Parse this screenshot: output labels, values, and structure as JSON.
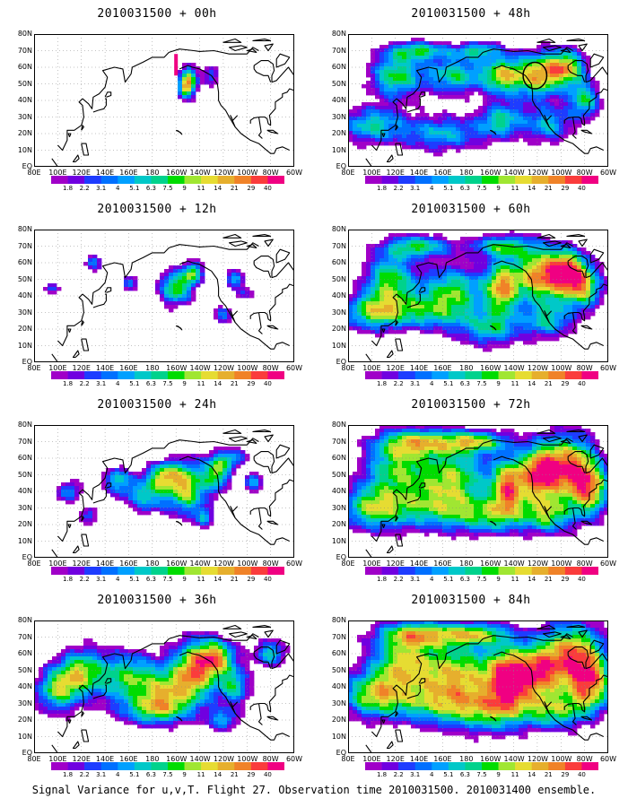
{
  "figure": {
    "caption": "Signal Variance for u,v,T. Flight 27. Observation time 2010031500. 2010031400 ensemble."
  },
  "chart_data": {
    "type": "heatmap",
    "map_lon_range": [
      80,
      300
    ],
    "map_lat_range": [
      0,
      80
    ],
    "lon_tick_labels": [
      "80E",
      "100E",
      "120E",
      "140E",
      "160E",
      "180",
      "160W",
      "140W",
      "120W",
      "100W",
      "80W",
      "60W"
    ],
    "lat_tick_labels": [
      "EQ",
      "10N",
      "20N",
      "30N",
      "40N",
      "50N",
      "60N",
      "70N",
      "80N"
    ],
    "colorbar_labels": [
      "1.8",
      "2.2",
      "3.1",
      "4",
      "5.1",
      "6.3",
      "7.5",
      "9",
      "11",
      "14",
      "21",
      "29",
      "40"
    ],
    "colorbar_colors": [
      "#a000c8",
      "#7000e0",
      "#1e3cff",
      "#0070ff",
      "#00a0ff",
      "#00c8c8",
      "#00d28c",
      "#00dc00",
      "#a0e632",
      "#e6dc32",
      "#e6af2d",
      "#f08228",
      "#fa3c3c",
      "#f00082"
    ],
    "panels": [
      {
        "title": "2010031500 + 00h",
        "lead_hours": 0
      },
      {
        "title": "2010031500 + 12h",
        "lead_hours": 12
      },
      {
        "title": "2010031500 + 24h",
        "lead_hours": 24
      },
      {
        "title": "2010031500 + 36h",
        "lead_hours": 36
      },
      {
        "title": "2010031500 + 48h",
        "lead_hours": 48
      },
      {
        "title": "2010031500 + 60h",
        "lead_hours": 60
      },
      {
        "title": "2010031500 + 72h",
        "lead_hours": 72
      },
      {
        "title": "2010031500 + 84h",
        "lead_hours": 84
      }
    ]
  },
  "blobs": [
    [
      [
        -150,
        50,
        6,
        6,
        0.6
      ],
      [
        -148,
        56,
        5,
        6,
        0.3
      ],
      [
        -153,
        46,
        4,
        4,
        0.3
      ],
      [
        -130,
        55,
        6,
        5,
        0.35
      ]
    ],
    [
      [
        -160,
        45,
        10,
        8,
        0.7
      ],
      [
        -145,
        54,
        6,
        5,
        0.6
      ],
      [
        -110,
        50,
        6,
        4,
        0.5
      ],
      [
        160,
        47,
        5,
        4,
        0.4
      ],
      [
        130,
        60,
        5,
        4,
        0.45
      ],
      [
        -120,
        28,
        6,
        4,
        0.4
      ],
      [
        95,
        45,
        5,
        3,
        0.4
      ],
      [
        -100,
        42,
        6,
        3,
        0.3
      ]
    ],
    [
      [
        -150,
        42,
        12,
        12,
        0.75
      ],
      [
        -125,
        52,
        8,
        8,
        0.7
      ],
      [
        175,
        38,
        14,
        8,
        0.55
      ],
      [
        150,
        47,
        8,
        6,
        0.5
      ],
      [
        110,
        40,
        8,
        5,
        0.45
      ],
      [
        -170,
        50,
        10,
        6,
        0.6
      ],
      [
        -135,
        24,
        5,
        4,
        0.45
      ],
      [
        -95,
        45,
        6,
        4,
        0.5
      ],
      [
        125,
        25,
        6,
        4,
        0.4
      ],
      [
        -110,
        60,
        8,
        4,
        0.45
      ]
    ],
    [
      [
        -145,
        48,
        14,
        14,
        0.85
      ],
      [
        -125,
        58,
        12,
        8,
        0.7
      ],
      [
        160,
        45,
        20,
        12,
        0.65
      ],
      [
        120,
        50,
        14,
        10,
        0.6
      ],
      [
        100,
        38,
        14,
        10,
        0.65
      ],
      [
        -170,
        35,
        14,
        10,
        0.5
      ],
      [
        -110,
        40,
        10,
        8,
        0.55
      ],
      [
        180,
        25,
        20,
        6,
        0.45
      ],
      [
        -120,
        20,
        10,
        5,
        0.45
      ],
      [
        -80,
        60,
        10,
        6,
        0.55
      ]
    ],
    [
      [
        -120,
        55,
        14,
        10,
        0.8
      ],
      [
        -95,
        60,
        12,
        8,
        0.75
      ],
      [
        -150,
        55,
        12,
        8,
        0.7
      ],
      [
        170,
        55,
        18,
        8,
        0.6
      ],
      [
        120,
        55,
        16,
        10,
        0.65
      ],
      [
        100,
        25,
        20,
        8,
        0.55
      ],
      [
        160,
        20,
        25,
        8,
        0.5
      ],
      [
        -150,
        28,
        14,
        8,
        0.55
      ],
      [
        -110,
        25,
        14,
        8,
        0.5
      ],
      [
        -80,
        40,
        10,
        8,
        0.6
      ],
      [
        140,
        70,
        18,
        4,
        0.55
      ],
      [
        -170,
        70,
        15,
        4,
        0.5
      ]
    ],
    [
      [
        -120,
        52,
        15,
        12,
        0.85
      ],
      [
        -95,
        55,
        12,
        10,
        0.8
      ],
      [
        -150,
        45,
        10,
        12,
        0.75
      ],
      [
        170,
        45,
        20,
        10,
        0.6
      ],
      [
        115,
        50,
        16,
        12,
        0.65
      ],
      [
        100,
        30,
        20,
        8,
        0.6
      ],
      [
        150,
        30,
        25,
        8,
        0.5
      ],
      [
        -160,
        20,
        20,
        8,
        0.5
      ],
      [
        -110,
        25,
        15,
        8,
        0.5
      ],
      [
        -80,
        45,
        12,
        10,
        0.65
      ],
      [
        140,
        70,
        20,
        5,
        0.6
      ],
      [
        -150,
        70,
        20,
        5,
        0.55
      ]
    ],
    [
      [
        -95,
        55,
        18,
        14,
        0.9
      ],
      [
        -145,
        43,
        10,
        12,
        0.8
      ],
      [
        -120,
        50,
        12,
        12,
        0.75
      ],
      [
        170,
        50,
        22,
        12,
        0.65
      ],
      [
        120,
        55,
        20,
        12,
        0.6
      ],
      [
        100,
        30,
        20,
        10,
        0.6
      ],
      [
        150,
        30,
        30,
        10,
        0.5
      ],
      [
        -160,
        25,
        25,
        8,
        0.5
      ],
      [
        -110,
        25,
        15,
        8,
        0.55
      ],
      [
        -75,
        40,
        12,
        12,
        0.7
      ],
      [
        140,
        70,
        25,
        6,
        0.6
      ],
      [
        -170,
        70,
        20,
        5,
        0.6
      ]
    ],
    [
      [
        -90,
        60,
        20,
        14,
        0.85
      ],
      [
        -145,
        45,
        12,
        14,
        0.8
      ],
      [
        -120,
        48,
        14,
        12,
        0.75
      ],
      [
        175,
        50,
        25,
        12,
        0.7
      ],
      [
        125,
        55,
        20,
        12,
        0.65
      ],
      [
        100,
        35,
        20,
        10,
        0.65
      ],
      [
        155,
        30,
        30,
        10,
        0.55
      ],
      [
        -160,
        25,
        25,
        10,
        0.5
      ],
      [
        -105,
        25,
        18,
        8,
        0.55
      ],
      [
        -75,
        40,
        14,
        12,
        0.75
      ],
      [
        140,
        72,
        25,
        6,
        0.65
      ],
      [
        -170,
        72,
        20,
        5,
        0.6
      ]
    ]
  ],
  "coast": [
    [
      [
        100,
        13
      ],
      [
        104,
        10
      ],
      [
        108,
        16
      ],
      [
        108,
        22
      ],
      [
        114,
        22
      ],
      [
        120,
        25
      ],
      [
        122,
        30
      ],
      [
        121,
        37
      ],
      [
        118,
        39
      ],
      [
        121,
        41
      ],
      [
        126,
        38
      ],
      [
        129,
        35
      ],
      [
        130,
        42
      ],
      [
        135,
        44
      ],
      [
        140,
        48
      ],
      [
        142,
        54
      ],
      [
        138,
        58
      ],
      [
        148,
        60
      ],
      [
        155,
        59
      ],
      [
        157,
        51
      ],
      [
        162,
        56
      ],
      [
        163,
        60
      ],
      [
        172,
        63
      ],
      [
        180,
        66
      ],
      [
        -170,
        66
      ],
      [
        -166,
        69
      ],
      [
        -157,
        71
      ],
      [
        -145,
        70
      ],
      [
        -140,
        69.5
      ]
    ],
    [
      [
        -140,
        69.5
      ],
      [
        -128,
        70
      ],
      [
        -115,
        68
      ],
      [
        -100,
        68
      ],
      [
        -95,
        72
      ],
      [
        -90,
        70
      ]
    ],
    [
      [
        -157,
        59
      ],
      [
        -150,
        61
      ],
      [
        -146,
        60
      ],
      [
        -140,
        59
      ],
      [
        -135,
        57
      ],
      [
        -130,
        55
      ],
      [
        -125,
        50
      ],
      [
        -124,
        45
      ],
      [
        -124,
        40
      ],
      [
        -122,
        37
      ],
      [
        -118,
        34
      ],
      [
        -115,
        30
      ],
      [
        -110,
        24
      ],
      [
        -105,
        20
      ],
      [
        -97,
        16
      ],
      [
        -90,
        14
      ],
      [
        -85,
        11
      ],
      [
        -80,
        8
      ],
      [
        -77,
        8
      ],
      [
        -75,
        11
      ],
      [
        -70,
        12
      ],
      [
        -64,
        10
      ]
    ],
    [
      [
        -108,
        31
      ],
      [
        -112,
        28
      ],
      [
        -114,
        31
      ],
      [
        -110,
        24
      ]
    ],
    [
      [
        -97,
        26
      ],
      [
        -97,
        28
      ],
      [
        -94,
        29.5
      ],
      [
        -89,
        30
      ],
      [
        -85,
        30
      ],
      [
        -83,
        29
      ],
      [
        -82,
        26
      ],
      [
        -80,
        25
      ],
      [
        -80,
        27
      ],
      [
        -81,
        31
      ],
      [
        -76,
        35
      ],
      [
        -76,
        39
      ],
      [
        -74,
        40
      ],
      [
        -70,
        42
      ],
      [
        -70,
        44
      ],
      [
        -66,
        45
      ],
      [
        -64,
        47
      ],
      [
        -60,
        46
      ]
    ],
    [
      [
        -80,
        51
      ],
      [
        -82,
        55
      ],
      [
        -86,
        55
      ],
      [
        -92,
        57
      ],
      [
        -94,
        59
      ],
      [
        -94,
        61
      ],
      [
        -88,
        64
      ],
      [
        -82,
        64
      ],
      [
        -78,
        62
      ],
      [
        -77,
        58
      ],
      [
        -79,
        55
      ],
      [
        -79,
        51
      ],
      [
        -75,
        52
      ],
      [
        -65,
        60
      ],
      [
        -60,
        55
      ]
    ],
    [
      [
        -90,
        30
      ],
      [
        -88,
        21
      ],
      [
        -90,
        19
      ],
      [
        -87,
        17
      ]
    ],
    [
      [
        130,
        33
      ],
      [
        134,
        34
      ],
      [
        139,
        35
      ],
      [
        141,
        37
      ],
      [
        141,
        41
      ],
      [
        140,
        41
      ]
    ],
    [
      [
        141,
        42
      ],
      [
        145,
        43
      ],
      [
        145,
        45
      ],
      [
        142,
        45
      ],
      [
        140,
        42
      ]
    ],
    [
      [
        120,
        22
      ],
      [
        121,
        25
      ],
      [
        122,
        24
      ],
      [
        120,
        22
      ]
    ],
    [
      [
        110,
        18
      ],
      [
        111,
        20
      ],
      [
        109,
        20
      ],
      [
        110,
        18
      ]
    ],
    [
      [
        120,
        14
      ],
      [
        124,
        14
      ],
      [
        126,
        7
      ],
      [
        122,
        7
      ],
      [
        120,
        14
      ]
    ],
    [
      [
        95,
        5
      ],
      [
        100,
        0
      ],
      [
        105,
        -1
      ]
    ],
    [
      [
        115,
        3
      ],
      [
        118,
        5
      ],
      [
        117,
        7
      ],
      [
        113,
        3
      ],
      [
        115,
        3
      ]
    ],
    [
      [
        -83,
        22
      ],
      [
        -78,
        22
      ],
      [
        -74,
        20
      ],
      [
        -80,
        21
      ],
      [
        -83,
        22
      ]
    ],
    [
      [
        -160,
        22
      ],
      [
        -157,
        21
      ],
      [
        -155,
        19.5
      ],
      [
        -156,
        20.5
      ],
      [
        -159,
        22
      ]
    ]
  ],
  "islands": [
    [
      [
        -75,
        60
      ],
      [
        -68,
        62
      ],
      [
        -64,
        66
      ],
      [
        -72,
        68
      ],
      [
        -75,
        65
      ]
    ],
    [
      [
        -100,
        70
      ],
      [
        -95,
        71
      ],
      [
        -92,
        69
      ],
      [
        -100,
        70
      ]
    ],
    [
      [
        -115,
        72
      ],
      [
        -105,
        73
      ],
      [
        -100,
        72
      ],
      [
        -110,
        70
      ]
    ],
    [
      [
        -85,
        73
      ],
      [
        -78,
        74
      ],
      [
        -82,
        70
      ]
    ],
    [
      [
        -120,
        75
      ],
      [
        -110,
        77
      ],
      [
        -105,
        75
      ]
    ],
    [
      [
        -95,
        76
      ],
      [
        -85,
        77
      ],
      [
        -80,
        76
      ]
    ]
  ],
  "extras": {
    "stripe_panel": 0,
    "stripe": {
      "lon": -160,
      "lat0": 55,
      "lat1": 68
    },
    "ellipse_panel": 4,
    "ellipse": {
      "lon": -122,
      "lat": 55,
      "rlon": 10,
      "rlat": 8
    }
  }
}
